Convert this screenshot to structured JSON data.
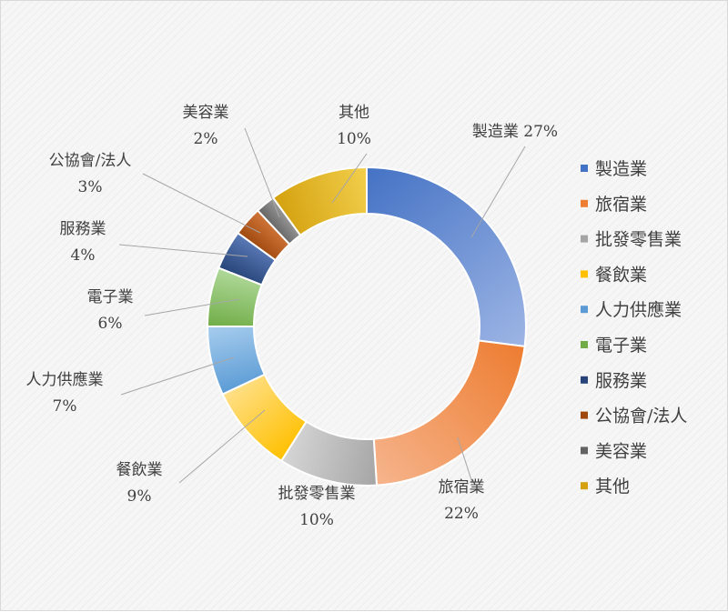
{
  "chart_data": {
    "type": "pie",
    "donut": true,
    "legend_position": "right",
    "categories": [
      "製造業",
      "旅宿業",
      "批發零售業",
      "餐飲業",
      "人力供應業",
      "電子業",
      "服務業",
      "公協會/法人",
      "美容業",
      "其他"
    ],
    "values": [
      27,
      22,
      10,
      9,
      7,
      6,
      4,
      3,
      2,
      10
    ],
    "value_labels": [
      "27%",
      "22%",
      "10%",
      "9%",
      "7%",
      "6%",
      "4%",
      "3%",
      "2%",
      "10%"
    ],
    "colors": [
      "#4472c4",
      "#ed7d31",
      "#a5a5a5",
      "#ffc000",
      "#5b9bd5",
      "#70ad47",
      "#264478",
      "#9e480e",
      "#636363",
      "#d4a10f"
    ],
    "colors_light": [
      "#9db5e5",
      "#f6b48c",
      "#d6d6d6",
      "#ffe08a",
      "#a7cdee",
      "#b0d99a",
      "#5b7bb8",
      "#d2763a",
      "#9a9a9a",
      "#f2cf4c"
    ]
  }
}
